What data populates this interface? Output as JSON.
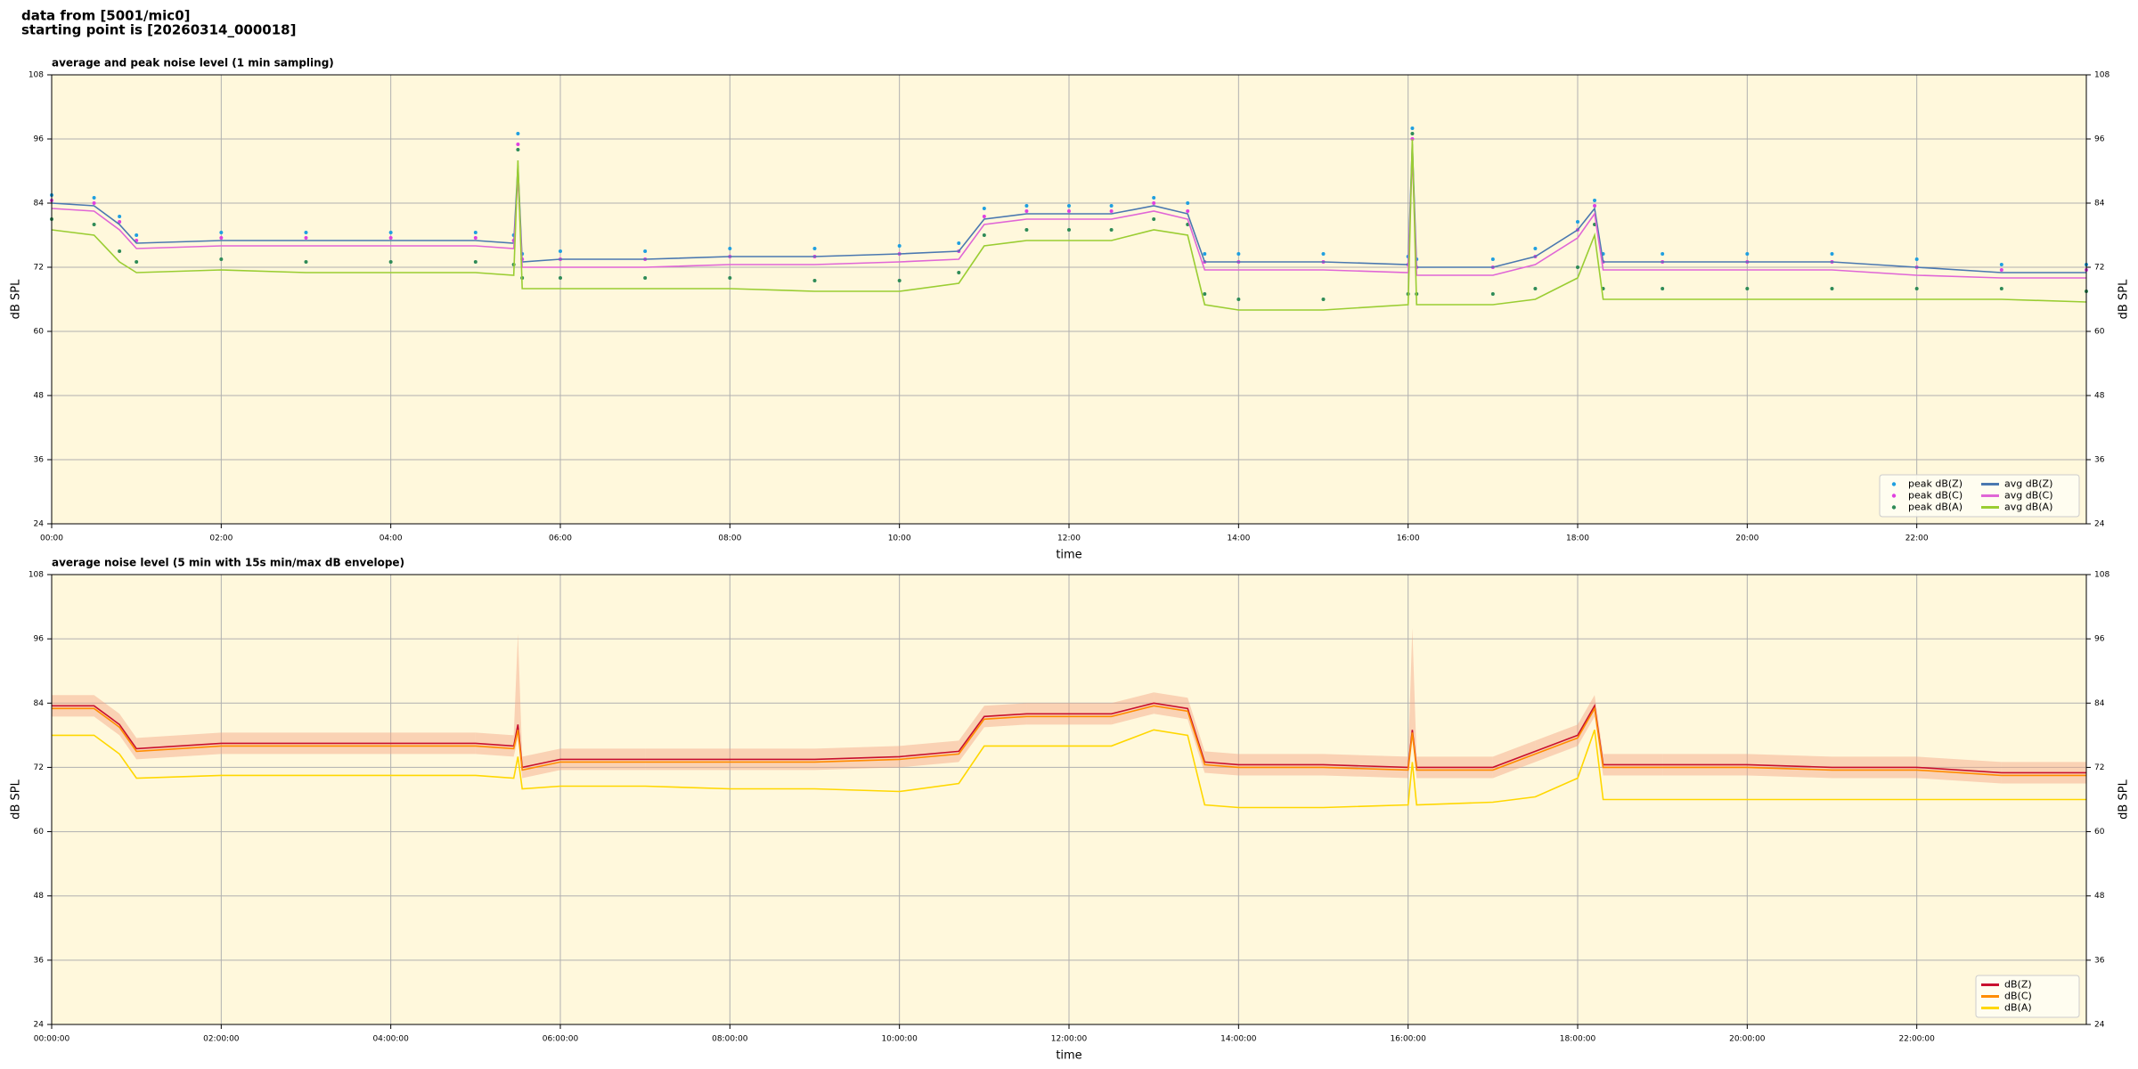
{
  "header": {
    "line1": "data from [5001/mic0]",
    "line2": "starting point is [20260314_000018]"
  },
  "chart_data": [
    {
      "type": "line",
      "title": "average and peak noise level (1 min sampling)",
      "xlabel": "time",
      "ylabel": "dB SPL",
      "x": [
        0,
        0.5,
        0.8,
        1,
        2,
        3,
        4,
        5,
        5.45,
        5.5,
        5.55,
        6,
        7,
        8,
        9,
        10,
        10.7,
        11,
        11.5,
        12,
        12.5,
        13,
        13.4,
        13.6,
        14,
        15,
        16,
        16.05,
        16.1,
        17,
        17.5,
        18,
        18.2,
        18.3,
        19,
        20,
        21,
        22,
        23,
        24
      ],
      "xlim": [
        0,
        24
      ],
      "xticks": [
        {
          "value": 0,
          "label": "00:00"
        },
        {
          "value": 2,
          "label": "02:00"
        },
        {
          "value": 4,
          "label": "04:00"
        },
        {
          "value": 6,
          "label": "06:00"
        },
        {
          "value": 8,
          "label": "08:00"
        },
        {
          "value": 10,
          "label": "10:00"
        },
        {
          "value": 12,
          "label": "12:00"
        },
        {
          "value": 14,
          "label": "14:00"
        },
        {
          "value": 16,
          "label": "16:00"
        },
        {
          "value": 18,
          "label": "18:00"
        },
        {
          "value": 20,
          "label": "20:00"
        },
        {
          "value": 22,
          "label": "22:00"
        }
      ],
      "ylim": [
        24,
        108
      ],
      "yticks": [
        24,
        36,
        48,
        60,
        72,
        84,
        96,
        108
      ],
      "grid": true,
      "legend": "lower right",
      "legend_columns": 2,
      "series": [
        {
          "name": "peak dB(Z)",
          "style": "scatter",
          "color": "#1f9fe0",
          "values": [
            85.5,
            85,
            81.5,
            78,
            78.5,
            78.5,
            78.5,
            78.5,
            78,
            97,
            74.5,
            75,
            75,
            75.5,
            75.5,
            76,
            76.5,
            83,
            83.5,
            83.5,
            83.5,
            85,
            84,
            74.5,
            74.5,
            74.5,
            74,
            98,
            73.5,
            73.5,
            75.5,
            80.5,
            84.5,
            74.5,
            74.5,
            74.5,
            74.5,
            73.5,
            72.5,
            72.5
          ]
        },
        {
          "name": "peak dB(C)",
          "style": "scatter",
          "color": "#e040e0",
          "values": [
            84.5,
            84,
            80.5,
            77,
            77.5,
            77.5,
            77.5,
            77.5,
            77,
            95,
            73.5,
            73.5,
            73.5,
            74,
            74,
            74.5,
            75,
            81.5,
            82.5,
            82.5,
            82.5,
            84,
            82.5,
            73,
            73,
            73,
            72.5,
            96,
            72,
            72,
            74,
            79,
            83.5,
            73,
            73,
            73,
            73,
            72,
            71.5,
            71.5
          ]
        },
        {
          "name": "peak dB(A)",
          "style": "scatter",
          "color": "#2e8b57",
          "values": [
            81,
            80,
            75,
            73,
            73.5,
            73,
            73,
            73,
            72.5,
            94,
            70,
            70,
            70,
            70,
            69.5,
            69.5,
            71,
            78,
            79,
            79,
            79,
            81,
            80,
            67,
            66,
            66,
            67,
            97,
            67,
            67,
            68,
            72,
            80,
            68,
            68,
            68,
            68,
            68,
            68,
            67.5
          ]
        },
        {
          "name": "avg dB(Z)",
          "style": "line",
          "color": "#4a78b0",
          "values": [
            84,
            83.5,
            80,
            76.5,
            77,
            77,
            77,
            77,
            76.5,
            91,
            73,
            73.5,
            73.5,
            74,
            74,
            74.5,
            75,
            81,
            82,
            82,
            82,
            83.5,
            82,
            73,
            73,
            73,
            72.5,
            95,
            72,
            72,
            74,
            79,
            83,
            73,
            73,
            73,
            73,
            72,
            71,
            71
          ]
        },
        {
          "name": "avg dB(C)",
          "style": "line",
          "color": "#e066d6",
          "values": [
            83,
            82.5,
            79,
            75.5,
            76,
            76,
            76,
            76,
            75.5,
            89,
            72,
            72,
            72,
            72.5,
            72.5,
            73,
            73.5,
            80,
            81,
            81,
            81,
            82.5,
            81,
            71.5,
            71.5,
            71.5,
            71,
            93,
            70.5,
            70.5,
            72.5,
            77.5,
            82,
            71.5,
            71.5,
            71.5,
            71.5,
            70.5,
            70,
            70
          ]
        },
        {
          "name": "avg dB(A)",
          "style": "line",
          "color": "#9acd32",
          "values": [
            79,
            78,
            73,
            71,
            71.5,
            71,
            71,
            71,
            70.5,
            92,
            68,
            68,
            68,
            68,
            67.5,
            67.5,
            69,
            76,
            77,
            77,
            77,
            79,
            78,
            65,
            64,
            64,
            65,
            96,
            65,
            65,
            66,
            70,
            78,
            66,
            66,
            66,
            66,
            66,
            66,
            65.5
          ]
        }
      ]
    },
    {
      "type": "line",
      "title": "average noise level (5 min with 15s min/max dB envelope)",
      "xlabel": "time",
      "ylabel": "dB SPL",
      "x": [
        0,
        0.5,
        0.8,
        1,
        2,
        3,
        4,
        5,
        5.45,
        5.5,
        5.55,
        6,
        7,
        8,
        9,
        10,
        10.7,
        11,
        11.5,
        12,
        12.5,
        13,
        13.4,
        13.6,
        14,
        15,
        16,
        16.05,
        16.1,
        17,
        17.5,
        18,
        18.2,
        18.3,
        19,
        20,
        21,
        22,
        23,
        24
      ],
      "xlim": [
        0,
        24
      ],
      "xticks": [
        {
          "value": 0,
          "label": "00:00:00"
        },
        {
          "value": 2,
          "label": "02:00:00"
        },
        {
          "value": 4,
          "label": "04:00:00"
        },
        {
          "value": 6,
          "label": "06:00:00"
        },
        {
          "value": 8,
          "label": "08:00:00"
        },
        {
          "value": 10,
          "label": "10:00:00"
        },
        {
          "value": 12,
          "label": "12:00:00"
        },
        {
          "value": 14,
          "label": "14:00:00"
        },
        {
          "value": 16,
          "label": "16:00:00"
        },
        {
          "value": 18,
          "label": "18:00:00"
        },
        {
          "value": 20,
          "label": "20:00:00"
        },
        {
          "value": 22,
          "label": "22:00:00"
        }
      ],
      "ylim": [
        24,
        108
      ],
      "yticks": [
        24,
        36,
        48,
        60,
        72,
        84,
        96,
        108
      ],
      "grid": true,
      "legend": "lower right",
      "legend_columns": 1,
      "envelope": {
        "color": "#f4a582",
        "upper": [
          85.5,
          85.5,
          82,
          77.5,
          78.5,
          78.5,
          78.5,
          78.5,
          78,
          97,
          74,
          75.5,
          75.5,
          75.5,
          75.5,
          76,
          77,
          83.5,
          84,
          84,
          84,
          86,
          85,
          75,
          74.5,
          74.5,
          74,
          98,
          74,
          74,
          77,
          80,
          85.5,
          74.5,
          74.5,
          74.5,
          74,
          74,
          73,
          73
        ],
        "lower": [
          81.5,
          81.5,
          78,
          73.5,
          74.5,
          74.5,
          74.5,
          74.5,
          74,
          77.5,
          70,
          71.5,
          71.5,
          71.5,
          71.5,
          72,
          73,
          79.5,
          80,
          80,
          80,
          82,
          81,
          71,
          70.5,
          70.5,
          70,
          77,
          70,
          70,
          73,
          76,
          81.5,
          70.5,
          70.5,
          70.5,
          70,
          70,
          69,
          69
        ]
      },
      "series": [
        {
          "name": "dB(Z)",
          "style": "line",
          "color": "#c8102e",
          "values": [
            83.5,
            83.5,
            80,
            75.5,
            76.5,
            76.5,
            76.5,
            76.5,
            76,
            80,
            72,
            73.5,
            73.5,
            73.5,
            73.5,
            74,
            75,
            81.5,
            82,
            82,
            82,
            84,
            83,
            73,
            72.5,
            72.5,
            72,
            79,
            72,
            72,
            75,
            78,
            83.5,
            72.5,
            72.5,
            72.5,
            72,
            72,
            71,
            71
          ]
        },
        {
          "name": "dB(C)",
          "style": "line",
          "color": "#ff8c00",
          "values": [
            83,
            83,
            79.5,
            75,
            76,
            76,
            76,
            76,
            75.5,
            79,
            71.5,
            73,
            73,
            73,
            73,
            73.5,
            74.5,
            81,
            81.5,
            81.5,
            81.5,
            83.5,
            82.5,
            72.5,
            72,
            72,
            71.5,
            78.5,
            71.5,
            71.5,
            74.5,
            77.5,
            83,
            72,
            72,
            72,
            71.5,
            71.5,
            70.5,
            70.5
          ]
        },
        {
          "name": "dB(A)",
          "style": "line",
          "color": "#ffd700",
          "values": [
            78,
            78,
            74.5,
            70,
            70.5,
            70.5,
            70.5,
            70.5,
            70,
            74,
            68,
            68.5,
            68.5,
            68,
            68,
            67.5,
            69,
            76,
            76,
            76,
            76,
            79,
            78,
            65,
            64.5,
            64.5,
            65,
            73,
            65,
            65.5,
            66.5,
            70,
            79,
            66,
            66,
            66,
            66,
            66,
            66,
            66
          ]
        }
      ]
    }
  ]
}
